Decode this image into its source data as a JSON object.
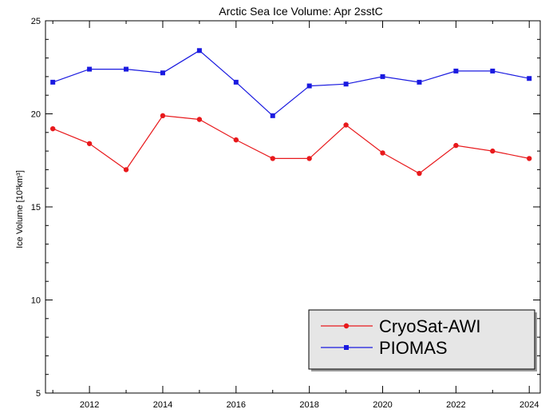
{
  "chart_data": {
    "type": "line",
    "title": "Arctic Sea Ice Volume: Apr 2sstC",
    "xlabel": "",
    "ylabel": "Ice Volume [10³km³]",
    "xlim": [
      2010.8,
      2024.3
    ],
    "ylim": [
      5,
      25
    ],
    "x_ticks": [
      2012,
      2014,
      2016,
      2018,
      2020,
      2022,
      2024
    ],
    "y_ticks": [
      5,
      10,
      15,
      20,
      25
    ],
    "grid": false,
    "legend_placement": "bottom-right",
    "x": [
      2011,
      2012,
      2013,
      2014,
      2015,
      2016,
      2017,
      2018,
      2019,
      2020,
      2021,
      2022,
      2023,
      2024
    ],
    "series": [
      {
        "name": "CryoSat-AWI",
        "color": "#e8191c",
        "marker": "circle",
        "values": [
          19.2,
          18.4,
          17.0,
          19.9,
          19.7,
          18.6,
          17.6,
          17.6,
          19.4,
          17.9,
          16.8,
          18.3,
          18.0,
          17.6
        ]
      },
      {
        "name": "PIOMAS",
        "color": "#1a1ae0",
        "marker": "square",
        "values": [
          21.7,
          22.4,
          22.4,
          22.2,
          23.4,
          21.7,
          19.9,
          21.5,
          21.6,
          22.0,
          21.7,
          22.3,
          22.3,
          21.9
        ]
      }
    ]
  }
}
